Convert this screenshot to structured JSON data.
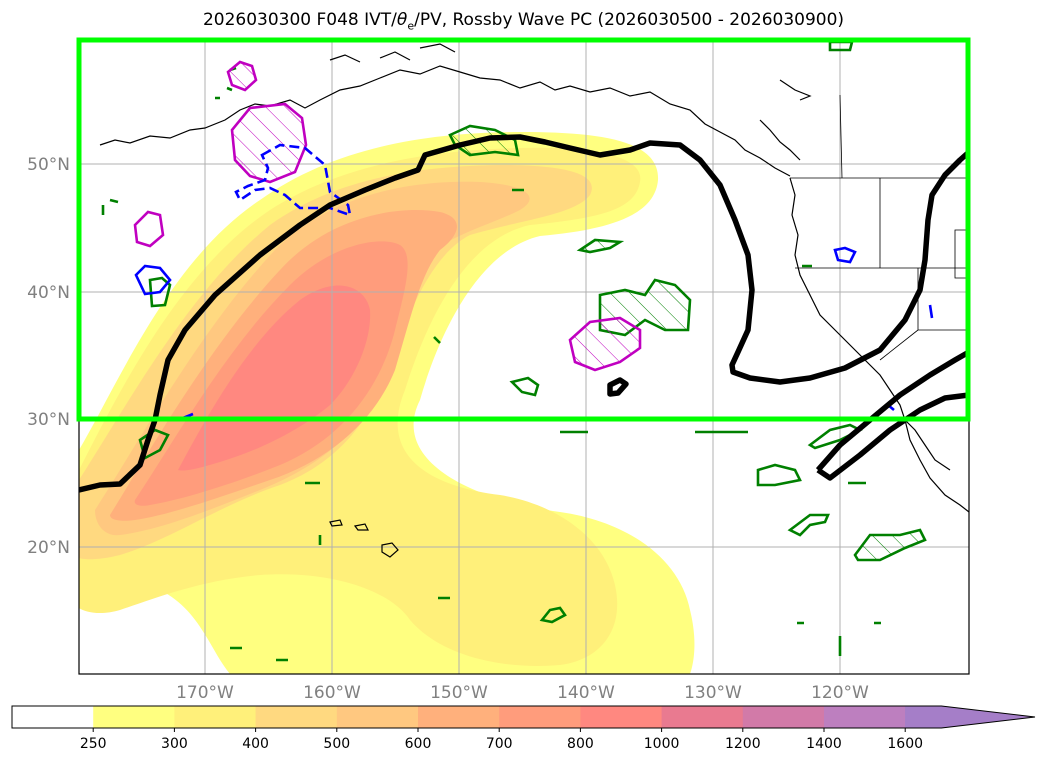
{
  "title": {
    "prefix": "2026030300 F048 IVT/",
    "theta": "θ",
    "theta_sub": "e",
    "suffix": "/PV, Rossby Wave PC (2026030500 - 2026030900)"
  },
  "map": {
    "lat_labels": [
      "50°N",
      "40°N",
      "30°N",
      "20°N"
    ],
    "lon_labels": [
      "170°W",
      "160°W",
      "150°W",
      "140°W",
      "130°W",
      "120°W"
    ],
    "colors": {
      "box": "#00ff00",
      "thick_contour": "#000000",
      "pv_positive": "#008000",
      "pv_magenta": "#c000c0",
      "pv_blue": "#0000ff",
      "coast": "#000000"
    }
  },
  "colorbar": {
    "levels": [
      "250",
      "300",
      "400",
      "500",
      "600",
      "700",
      "800",
      "1000",
      "1200",
      "1400",
      "1600"
    ],
    "colors": [
      "#ffffff",
      "#ffff80",
      "#fff07a",
      "#ffd980",
      "#ffc880",
      "#ffb07c",
      "#ff9c7c",
      "#ff8880",
      "#e97a90",
      "#d27aa8",
      "#bd7fbf",
      "#a57ec8"
    ]
  }
}
